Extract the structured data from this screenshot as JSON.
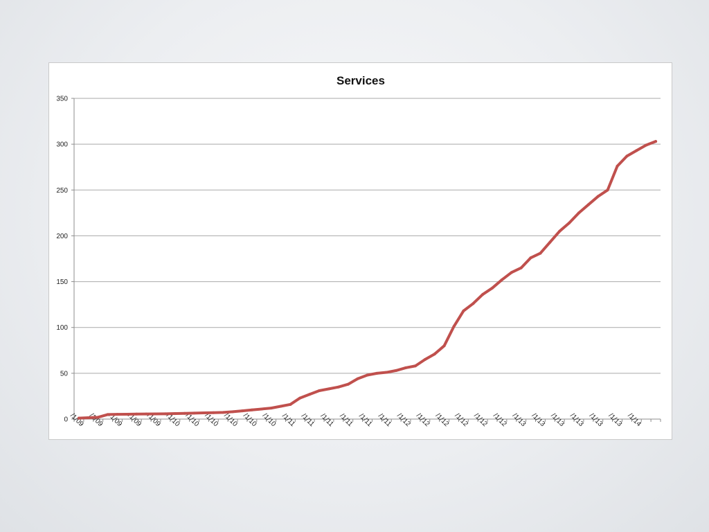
{
  "chart_data": {
    "type": "line",
    "title": "Services",
    "xlabel": "",
    "ylabel": "",
    "ylim": [
      0,
      350
    ],
    "yticks": [
      0,
      50,
      100,
      150,
      200,
      250,
      300,
      350
    ],
    "grid": true,
    "legend": "none",
    "line_color": "#c0504d",
    "x": [
      "1/1/09",
      "2/1/09",
      "3/1/09",
      "4/1/09",
      "5/1/09",
      "6/1/09",
      "7/1/09",
      "8/1/09",
      "9/1/09",
      "10/1/09",
      "11/1/09",
      "12/1/09",
      "1/1/10",
      "2/1/10",
      "3/1/10",
      "4/1/10",
      "5/1/10",
      "6/1/10",
      "7/1/10",
      "8/1/10",
      "9/1/10",
      "10/1/10",
      "11/1/10",
      "12/1/10",
      "1/1/11",
      "2/1/11",
      "3/1/11",
      "4/1/11",
      "5/1/11",
      "6/1/11",
      "7/1/11",
      "8/1/11",
      "9/1/11",
      "10/1/11",
      "11/1/11",
      "12/1/11",
      "1/1/12",
      "2/1/12",
      "3/1/12",
      "4/1/12",
      "5/1/12",
      "6/1/12",
      "7/1/12",
      "8/1/12",
      "9/1/12",
      "10/1/12",
      "11/1/12",
      "12/1/12",
      "1/1/13",
      "2/1/13",
      "3/1/13",
      "4/1/13",
      "5/1/13",
      "6/1/13",
      "7/1/13",
      "8/1/13",
      "9/1/13",
      "10/1/13",
      "11/1/13",
      "12/1/13",
      "1/1/14"
    ],
    "tick_labels": [
      "/1/09",
      "/1/09",
      "/1/09",
      "/1/09",
      "/1/09",
      "/1/10",
      "/1/10",
      "/1/10",
      "/1/10",
      "/1/10",
      "/1/10",
      "/1/11",
      "/1/11",
      "/1/11",
      "/1/11",
      "/1/11",
      "/1/11",
      "/1/12",
      "/1/12",
      "/1/12",
      "/1/12",
      "/1/12",
      "/1/12",
      "/1/13",
      "/1/13",
      "/1/13",
      "/1/13",
      "/1/13",
      "/1/13",
      "/1/14"
    ],
    "tick_every": 2,
    "series": [
      {
        "values": [
          1,
          1.5,
          2,
          5,
          5.2,
          5.3,
          5.5,
          5.6,
          5.7,
          5.8,
          6,
          6.2,
          6.5,
          6.8,
          7,
          7.3,
          8,
          9,
          10,
          11,
          12,
          14,
          16,
          23,
          27,
          31,
          33,
          35,
          38,
          44,
          48,
          50,
          51,
          53,
          56,
          58,
          65,
          71,
          80,
          101,
          118,
          126,
          136,
          143,
          152,
          160,
          165,
          176,
          181,
          193,
          205,
          214,
          225,
          234,
          243,
          250,
          276,
          287,
          293,
          299,
          303
        ]
      }
    ]
  }
}
